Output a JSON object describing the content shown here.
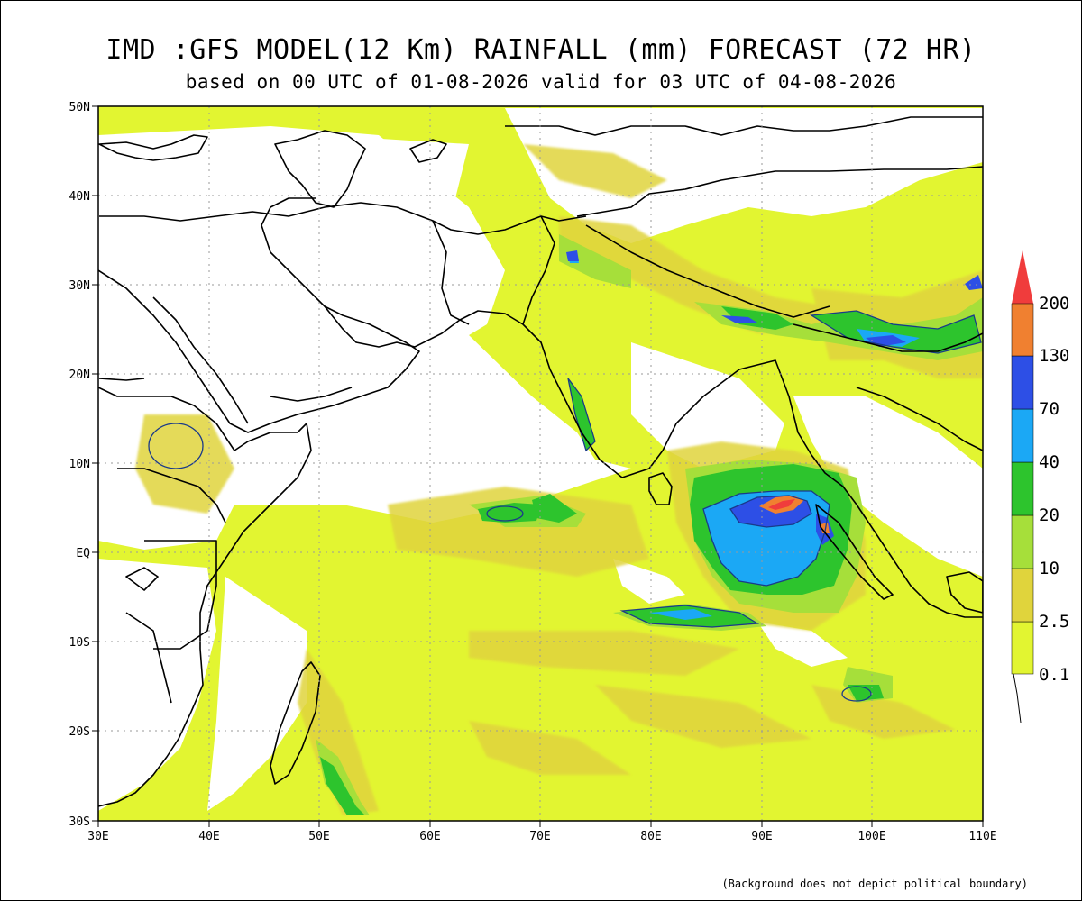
{
  "title": "IMD :GFS MODEL(12 Km) RAINFALL (mm) FORECAST (72 HR)",
  "subtitle": "based on 00 UTC of 01-08-2026 valid for 03 UTC of 04-08-2026",
  "footer": "(Background does not depict political boundary)",
  "lat_labels": [
    "50N",
    "40N",
    "30N",
    "20N",
    "10N",
    "EQ",
    "10S",
    "20S",
    "30S"
  ],
  "lon_labels": [
    "30E",
    "40E",
    "50E",
    "60E",
    "70E",
    "80E",
    "90E",
    "100E",
    "110E"
  ],
  "legend": {
    "labels": [
      "0.1",
      "2.5",
      "10",
      "20",
      "40",
      "70",
      "130",
      "200"
    ],
    "colors": [
      "#e2f531",
      "#e0d43c",
      "#a6df3a",
      "#2dc42d",
      "#1ba8f5",
      "#2d4fe6",
      "#f08030",
      "#f03c3c"
    ]
  },
  "colors": {
    "land_bg": "#ffffff",
    "coast": "#000000",
    "grid": "#9a9a9a",
    "contour": "#1a3a8a"
  }
}
